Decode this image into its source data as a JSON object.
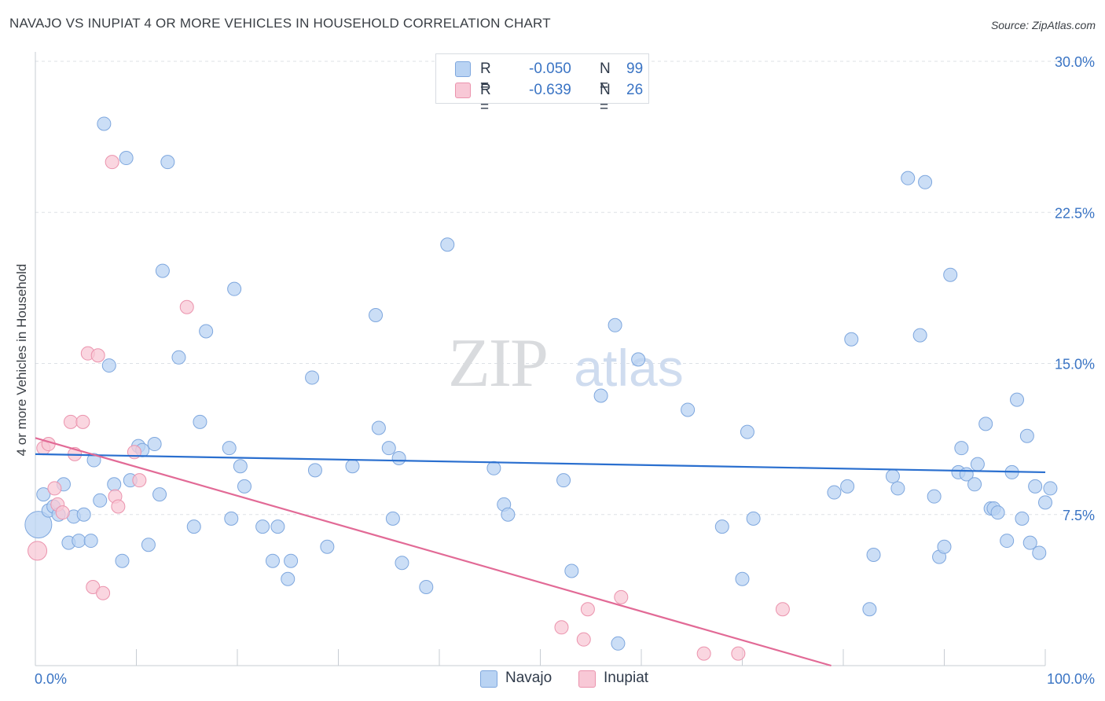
{
  "title": "NAVAJO VS INUPIAT 4 OR MORE VEHICLES IN HOUSEHOLD CORRELATION CHART",
  "source": "Source: ZipAtlas.com",
  "watermark": {
    "zip": "ZIP",
    "atlas": "atlas"
  },
  "legend": {
    "navajo": {
      "r_label": "R =",
      "r_value": "-0.050",
      "n_label": "N =",
      "n_value": "99"
    },
    "inupiat": {
      "r_label": "R =",
      "r_value": "-0.639",
      "n_label": "N =",
      "n_value": "26"
    }
  },
  "bottom_legend": {
    "navajo": "Navajo",
    "inupiat": "Inupiat"
  },
  "colors": {
    "navajo_fill": "#b9d3f3",
    "navajo_stroke": "#7ea7de",
    "navajo_line": "#2a6fcf",
    "inupiat_fill": "#f8c8d6",
    "inupiat_stroke": "#eb93ad",
    "inupiat_line": "#e26a96",
    "tick_label": "#3a74c4",
    "grid": "#dde1e6"
  },
  "chart_data": {
    "type": "scatter",
    "title": "NAVAJO VS INUPIAT 4 OR MORE VEHICLES IN HOUSEHOLD CORRELATION CHART",
    "xlabel": "",
    "ylabel": "4 or more Vehicles in Household",
    "xlim": [
      0,
      100
    ],
    "ylim": [
      0,
      30.0
    ],
    "x_tick_labels": [
      "0.0%",
      "100.0%"
    ],
    "y_ticks": [
      7.5,
      15.0,
      22.5,
      30.0
    ],
    "y_tick_labels": [
      "7.5%",
      "15.0%",
      "22.5%",
      "30.0%"
    ],
    "grid": true,
    "legend_position": "top-center",
    "series": [
      {
        "name": "Navajo",
        "r": -0.05,
        "n": 99,
        "trend": [
          [
            0,
            10.5
          ],
          [
            100,
            9.6
          ]
        ],
        "points": [
          [
            0.3,
            7.0
          ],
          [
            0.8,
            8.5
          ],
          [
            1.3,
            7.7
          ],
          [
            1.8,
            7.9
          ],
          [
            2.3,
            7.5
          ],
          [
            2.8,
            9.0
          ],
          [
            3.3,
            6.1
          ],
          [
            3.8,
            7.4
          ],
          [
            4.3,
            6.2
          ],
          [
            4.8,
            7.5
          ],
          [
            5.5,
            6.2
          ],
          [
            5.8,
            10.2
          ],
          [
            6.4,
            8.2
          ],
          [
            6.8,
            26.9
          ],
          [
            7.3,
            14.9
          ],
          [
            7.8,
            9.0
          ],
          [
            8.6,
            5.2
          ],
          [
            9.0,
            25.2
          ],
          [
            9.4,
            9.2
          ],
          [
            10.2,
            10.9
          ],
          [
            10.6,
            10.7
          ],
          [
            11.2,
            6.0
          ],
          [
            11.8,
            11.0
          ],
          [
            12.3,
            8.5
          ],
          [
            12.6,
            19.6
          ],
          [
            13.1,
            25.0
          ],
          [
            14.2,
            15.3
          ],
          [
            15.7,
            6.9
          ],
          [
            16.3,
            12.1
          ],
          [
            16.9,
            16.6
          ],
          [
            19.2,
            10.8
          ],
          [
            19.4,
            7.3
          ],
          [
            19.7,
            18.7
          ],
          [
            20.3,
            9.9
          ],
          [
            20.7,
            8.9
          ],
          [
            22.5,
            6.9
          ],
          [
            23.5,
            5.2
          ],
          [
            24.0,
            6.9
          ],
          [
            25.0,
            4.3
          ],
          [
            25.3,
            5.2
          ],
          [
            27.4,
            14.3
          ],
          [
            27.7,
            9.7
          ],
          [
            28.9,
            5.9
          ],
          [
            31.4,
            9.9
          ],
          [
            33.7,
            17.4
          ],
          [
            34.0,
            11.8
          ],
          [
            35.0,
            10.8
          ],
          [
            35.4,
            7.3
          ],
          [
            36.0,
            10.3
          ],
          [
            36.3,
            5.1
          ],
          [
            38.7,
            3.9
          ],
          [
            40.8,
            20.9
          ],
          [
            45.4,
            9.8
          ],
          [
            46.4,
            8.0
          ],
          [
            46.8,
            7.5
          ],
          [
            52.3,
            9.2
          ],
          [
            53.1,
            4.7
          ],
          [
            56.0,
            13.4
          ],
          [
            57.4,
            16.9
          ],
          [
            57.7,
            1.1
          ],
          [
            59.7,
            15.2
          ],
          [
            64.6,
            12.7
          ],
          [
            68.0,
            6.9
          ],
          [
            70.0,
            4.3
          ],
          [
            70.5,
            11.6
          ],
          [
            71.1,
            7.3
          ],
          [
            79.1,
            8.6
          ],
          [
            80.4,
            8.9
          ],
          [
            80.8,
            16.2
          ],
          [
            82.6,
            2.8
          ],
          [
            83.0,
            5.5
          ],
          [
            84.9,
            9.4
          ],
          [
            85.4,
            8.8
          ],
          [
            86.4,
            24.2
          ],
          [
            87.6,
            16.4
          ],
          [
            88.1,
            24.0
          ],
          [
            89.0,
            8.4
          ],
          [
            89.5,
            5.4
          ],
          [
            90.0,
            5.9
          ],
          [
            90.6,
            19.4
          ],
          [
            91.4,
            9.6
          ],
          [
            91.7,
            10.8
          ],
          [
            92.2,
            9.5
          ],
          [
            93.0,
            9.0
          ],
          [
            93.3,
            10.0
          ],
          [
            94.1,
            12.0
          ],
          [
            94.6,
            7.8
          ],
          [
            94.9,
            7.8
          ],
          [
            95.3,
            7.6
          ],
          [
            96.2,
            6.2
          ],
          [
            96.7,
            9.6
          ],
          [
            97.2,
            13.2
          ],
          [
            97.7,
            7.3
          ],
          [
            98.2,
            11.4
          ],
          [
            98.5,
            6.1
          ],
          [
            99.0,
            8.9
          ],
          [
            99.4,
            5.6
          ],
          [
            100.0,
            8.1
          ],
          [
            100.5,
            8.8
          ]
        ]
      },
      {
        "name": "Inupiat",
        "r": -0.639,
        "n": 26,
        "trend": [
          [
            0,
            11.3
          ],
          [
            78.8,
            0
          ]
        ],
        "points": [
          [
            0.2,
            5.7
          ],
          [
            0.8,
            10.8
          ],
          [
            1.3,
            11.0
          ],
          [
            1.9,
            8.8
          ],
          [
            2.2,
            8.0
          ],
          [
            2.7,
            7.6
          ],
          [
            3.5,
            12.1
          ],
          [
            3.9,
            10.5
          ],
          [
            4.7,
            12.1
          ],
          [
            5.2,
            15.5
          ],
          [
            5.7,
            3.9
          ],
          [
            6.2,
            15.4
          ],
          [
            6.7,
            3.6
          ],
          [
            7.6,
            25.0
          ],
          [
            7.9,
            8.4
          ],
          [
            8.2,
            7.9
          ],
          [
            9.8,
            10.6
          ],
          [
            10.3,
            9.2
          ],
          [
            15.0,
            17.8
          ],
          [
            52.1,
            1.9
          ],
          [
            54.3,
            1.3
          ],
          [
            54.7,
            2.8
          ],
          [
            58.0,
            3.4
          ],
          [
            66.2,
            0.6
          ],
          [
            69.6,
            0.6
          ],
          [
            74.0,
            2.8
          ]
        ]
      }
    ]
  }
}
